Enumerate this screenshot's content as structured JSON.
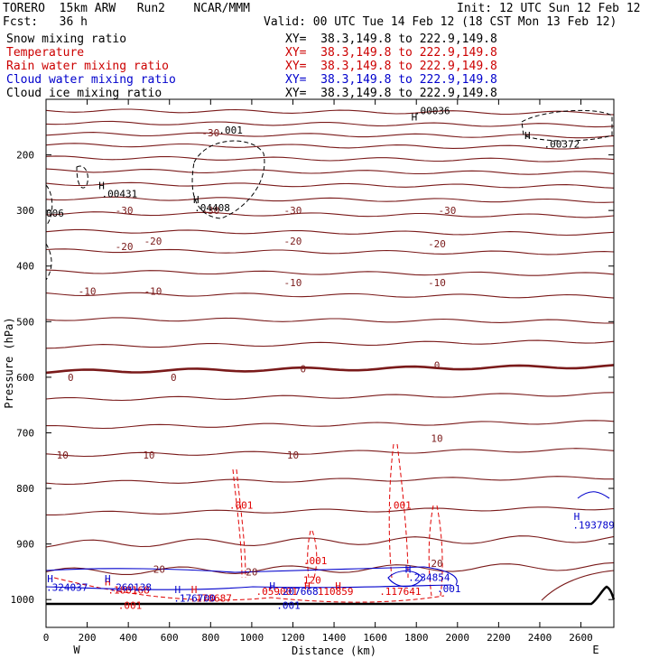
{
  "header": {
    "title_left": "TORERO  15km ARW   Run2    NCAR/MMM",
    "init": "Init: 12 UTC Sun 12 Feb 12",
    "fcst": "Fcst:   36 h",
    "valid": "Valid: 00 UTC Tue 14 Feb 12 (18 CST Mon 13 Feb 12)"
  },
  "legend": [
    {
      "label": "Snow mixing ratio",
      "xy": "XY=  38.3,149.8 to 222.9,149.8",
      "color": "#000000"
    },
    {
      "label": "Temperature",
      "xy": "XY=  38.3,149.8 to 222.9,149.8",
      "color": "#cc0000"
    },
    {
      "label": "Rain water mixing ratio",
      "xy": "XY=  38.3,149.8 to 222.9,149.8",
      "color": "#cc0000"
    },
    {
      "label": "Cloud water mixing ratio",
      "xy": "XY=  38.3,149.8 to 222.9,149.8",
      "color": "#0000cc"
    },
    {
      "label": "Cloud ice mixing ratio",
      "xy": "XY=  38.3,149.8 to 222.9,149.8",
      "color": "#000000"
    }
  ],
  "colors": {
    "temperature": "#7a1a1a",
    "rain": "#e00000",
    "cloud_water": "#0000cc",
    "snow": "#000000",
    "terrain": "#000000"
  },
  "chart_data": {
    "type": "cross-section contour",
    "xlabel": "Distance (km)",
    "ylabel": "Pressure (hPa)",
    "xlim": [
      0,
      2760
    ],
    "ylim": [
      1050,
      100
    ],
    "x_ticks": [
      0,
      200,
      400,
      600,
      800,
      1000,
      1200,
      1400,
      1600,
      1800,
      2000,
      2200,
      2400,
      2600
    ],
    "y_ticks": [
      200,
      300,
      400,
      500,
      600,
      700,
      800,
      900,
      1000
    ],
    "left_end": "W",
    "right_end": "E",
    "temperature_isotherms": [
      {
        "p": 120,
        "label": ""
      },
      {
        "p": 142,
        "label": ""
      },
      {
        "p": 162,
        "label": ""
      },
      {
        "p": 182,
        "label": ""
      },
      {
        "p": 205,
        "label": ""
      },
      {
        "p": 228,
        "label": ""
      },
      {
        "p": 252,
        "label": ""
      },
      {
        "p": 278,
        "label": ""
      },
      {
        "p": 305,
        "label": "-30"
      },
      {
        "p": 337,
        "label": ""
      },
      {
        "p": 372,
        "label": "-20"
      },
      {
        "p": 410,
        "label": ""
      },
      {
        "p": 450,
        "label": "-10"
      },
      {
        "p": 495,
        "label": ""
      },
      {
        "p": 545,
        "label": ""
      },
      {
        "p": 590,
        "label": "0"
      },
      {
        "p": 640,
        "label": ""
      },
      {
        "p": 690,
        "label": ""
      },
      {
        "p": 740,
        "label": "10"
      },
      {
        "p": 790,
        "label": ""
      },
      {
        "p": 845,
        "label": ""
      },
      {
        "p": 900,
        "label": ""
      },
      {
        "p": 950,
        "label": "20"
      }
    ],
    "temperature_labels": [
      {
        "x": 380,
        "p": 300,
        "text": "-30"
      },
      {
        "x": 800,
        "p": 300,
        "text": "-30"
      },
      {
        "x": 1200,
        "p": 300,
        "text": "-30"
      },
      {
        "x": 1950,
        "p": 300,
        "text": "-30"
      },
      {
        "x": 800,
        "p": 160,
        "text": "-30"
      },
      {
        "x": 380,
        "p": 365,
        "text": "-20"
      },
      {
        "x": 520,
        "p": 355,
        "text": "-20"
      },
      {
        "x": 1200,
        "p": 355,
        "text": "-20"
      },
      {
        "x": 1900,
        "p": 360,
        "text": "-20"
      },
      {
        "x": 200,
        "p": 445,
        "text": "-10"
      },
      {
        "x": 520,
        "p": 445,
        "text": "-10"
      },
      {
        "x": 1200,
        "p": 430,
        "text": "-10"
      },
      {
        "x": 1900,
        "p": 430,
        "text": "-10"
      },
      {
        "x": 120,
        "p": 600,
        "text": "0"
      },
      {
        "x": 620,
        "p": 600,
        "text": "0"
      },
      {
        "x": 1250,
        "p": 585,
        "text": "0"
      },
      {
        "x": 1900,
        "p": 578,
        "text": "0"
      },
      {
        "x": 80,
        "p": 740,
        "text": "10"
      },
      {
        "x": 500,
        "p": 740,
        "text": "10"
      },
      {
        "x": 1200,
        "p": 740,
        "text": "10"
      },
      {
        "x": 1900,
        "p": 710,
        "text": "10"
      },
      {
        "x": 550,
        "p": 945,
        "text": "20"
      },
      {
        "x": 1000,
        "p": 950,
        "text": "20"
      },
      {
        "x": 1900,
        "p": 935,
        "text": "20"
      }
    ],
    "snow_labels": [
      {
        "x": 1790,
        "p": 120,
        "text": ".00036"
      },
      {
        "x": 2420,
        "p": 180,
        "text": ".00372"
      },
      {
        "x": 270,
        "p": 270,
        "text": ".00431"
      },
      {
        "x": 720,
        "p": 295,
        "text": ".04408"
      },
      {
        "x": 840,
        "p": 155,
        "text": ".001"
      },
      {
        "x": 0,
        "p": 305,
        "text": "006"
      }
    ],
    "snow_highs": [
      {
        "x": 1790,
        "p": 132
      },
      {
        "x": 2340,
        "p": 165
      },
      {
        "x": 270,
        "p": 255
      },
      {
        "x": 730,
        "p": 280
      }
    ],
    "rain_labels": [
      {
        "x": 890,
        "p": 830,
        "text": ".001"
      },
      {
        "x": 1660,
        "p": 830,
        "text": ".001"
      },
      {
        "x": 1250,
        "p": 930,
        "text": ".001"
      },
      {
        "x": 1250,
        "p": 965,
        "text": "120"
      },
      {
        "x": 300,
        "p": 983,
        "text": ".180168"
      },
      {
        "x": 700,
        "p": 997,
        "text": ".178687"
      },
      {
        "x": 1020,
        "p": 985,
        "text": ".059001"
      },
      {
        "x": 1320,
        "p": 985,
        "text": "110859"
      },
      {
        "x": 1620,
        "p": 985,
        "text": ".117641"
      },
      {
        "x": 350,
        "p": 1010,
        "text": ".001"
      }
    ],
    "cloud_water_labels": [
      {
        "x": 0,
        "p": 978,
        "text": ".324037"
      },
      {
        "x": 310,
        "p": 978,
        "text": ".260138"
      },
      {
        "x": 620,
        "p": 997,
        "text": ".176700"
      },
      {
        "x": 1120,
        "p": 985,
        "text": ".207668"
      },
      {
        "x": 1760,
        "p": 960,
        "text": ".234854"
      },
      {
        "x": 2560,
        "p": 866,
        "text": ".193789"
      },
      {
        "x": 1900,
        "p": 980,
        "text": ".001"
      },
      {
        "x": 1120,
        "p": 1010,
        "text": ".001"
      }
    ],
    "cloud_water_highs": [
      {
        "x": 20,
        "p": 962
      },
      {
        "x": 300,
        "p": 962
      },
      {
        "x": 640,
        "p": 982
      },
      {
        "x": 1100,
        "p": 975
      },
      {
        "x": 1760,
        "p": 945
      },
      {
        "x": 2580,
        "p": 850
      }
    ],
    "rain_highs": [
      {
        "x": 300,
        "p": 968
      },
      {
        "x": 720,
        "p": 982
      },
      {
        "x": 1270,
        "p": 975
      },
      {
        "x": 1420,
        "p": 975
      }
    ]
  }
}
